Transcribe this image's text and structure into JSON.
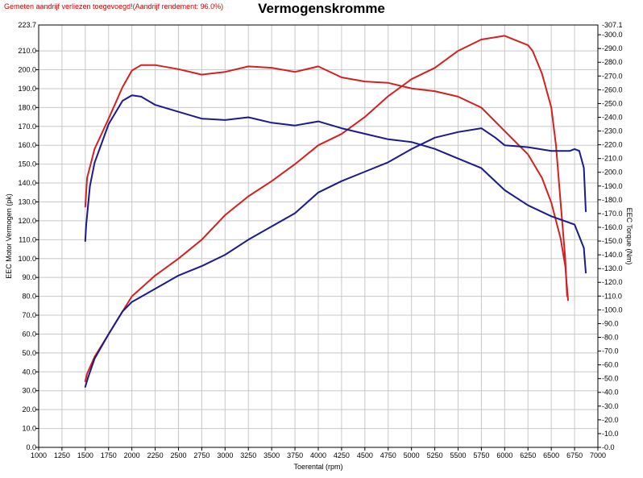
{
  "note": "Gemeten aandrijf verliezen toegevoegd!(Aandrijf rendement: 96.0%)",
  "chart_data": {
    "type": "line",
    "title": "Vermogenskromme",
    "xlabel": "Toerental (rpm)",
    "ylabel_left": "EEC Motor Vermogen (pk)",
    "ylabel_right": "EEC Torque (Nm)",
    "xlim": [
      1000,
      7000
    ],
    "ylim_left": [
      0,
      223.7
    ],
    "ylim_right": [
      0,
      307.1
    ],
    "x_ticks": [
      "1000",
      "1250",
      "1500",
      "1750",
      "2000",
      "2250",
      "2500",
      "2750",
      "3000",
      "3250",
      "3500",
      "3750",
      "4000",
      "4250",
      "4500",
      "4750",
      "5000",
      "5250",
      "5500",
      "5750",
      "6000",
      "6250",
      "6500",
      "6750",
      "7000"
    ],
    "y_left_ticks": [
      "0.0",
      "10.0",
      "20.0",
      "30.0",
      "40.0",
      "50.0",
      "60.0",
      "70.0",
      "80.0",
      "90.0",
      "100.0",
      "110.0",
      "120.0",
      "130.0",
      "140.0",
      "150.0",
      "160.0",
      "170.0",
      "180.0",
      "190.0",
      "200.0",
      "210.0"
    ],
    "y_left_top": "223.7",
    "y_right_ticks": [
      "0.0",
      "10.0",
      "20.0",
      "30.0",
      "40.0",
      "50.0",
      "60.0",
      "70.0",
      "80.0",
      "90.0",
      "100.0",
      "110.0",
      "120.0",
      "130.0",
      "140.0",
      "150.0",
      "160.0",
      "170.0",
      "180.0",
      "190.0",
      "200.0",
      "210.0",
      "220.0",
      "230.0",
      "240.0",
      "250.0",
      "260.0",
      "270.0",
      "280.0",
      "290.0",
      "300.0"
    ],
    "y_right_top": "307.1",
    "grid": true,
    "colors": {
      "red": "#d42020",
      "blue": "#1a1a8c",
      "grid": "#c8c8c8"
    },
    "series": [
      {
        "color": "red",
        "axis": "left",
        "x": [
          1500,
          1520,
          1600,
          1750,
          1900,
          2000,
          2250,
          2500,
          2750,
          3000,
          3250,
          3500,
          3750,
          4000,
          4250,
          4500,
          4750,
          5000,
          5250,
          5500,
          5750,
          6000,
          6250,
          6300,
          6400,
          6500,
          6550,
          6600,
          6650,
          6670
        ],
        "y": [
          35,
          39,
          48,
          60,
          72,
          80,
          91,
          100,
          110,
          123,
          133,
          141,
          150,
          160,
          166,
          175,
          186,
          195,
          201,
          210,
          216,
          218,
          213,
          210,
          198,
          180,
          160,
          130,
          100,
          80
        ]
      },
      {
        "color": "red",
        "axis": "right",
        "x": [
          1500,
          1520,
          1600,
          1750,
          1900,
          2000,
          2100,
          2250,
          2500,
          2750,
          3000,
          3250,
          3500,
          3750,
          4000,
          4250,
          4500,
          4750,
          5000,
          5250,
          5500,
          5750,
          6000,
          6250,
          6400,
          6500,
          6600,
          6650,
          6680
        ],
        "y": [
          175,
          196,
          217,
          239,
          262,
          274,
          278,
          278,
          275,
          271,
          273,
          277,
          276,
          273,
          277,
          269,
          266,
          265,
          261,
          259,
          255,
          247,
          230,
          213,
          196,
          178,
          152,
          132,
          107
        ]
      },
      {
        "color": "blue",
        "axis": "left",
        "x": [
          1500,
          1530,
          1600,
          1750,
          1900,
          2000,
          2250,
          2500,
          2750,
          3000,
          3250,
          3500,
          3750,
          4000,
          4250,
          4500,
          4750,
          5000,
          5250,
          5500,
          5750,
          5900,
          6000,
          6250,
          6500,
          6700,
          6750,
          6800,
          6850,
          6870
        ],
        "y": [
          32,
          37,
          47,
          60,
          72,
          77,
          84,
          91,
          96,
          102,
          110,
          117,
          124,
          135,
          141,
          146,
          151,
          158,
          164,
          167,
          169,
          164,
          160,
          159,
          157,
          157,
          158,
          157,
          148,
          125
        ]
      },
      {
        "color": "blue",
        "axis": "right",
        "x": [
          1500,
          1510,
          1550,
          1600,
          1750,
          1900,
          2000,
          2100,
          2250,
          2500,
          2750,
          3000,
          3250,
          3500,
          3750,
          4000,
          4250,
          4500,
          4750,
          5000,
          5250,
          5500,
          5750,
          6000,
          6250,
          6500,
          6750,
          6850,
          6870
        ],
        "y": [
          150,
          162,
          190,
          207,
          235,
          252,
          256,
          255,
          249,
          244,
          239,
          238,
          240,
          236,
          234,
          237,
          232,
          228,
          224,
          222,
          217,
          210,
          203,
          187,
          176,
          168,
          162,
          145,
          127
        ]
      }
    ]
  }
}
